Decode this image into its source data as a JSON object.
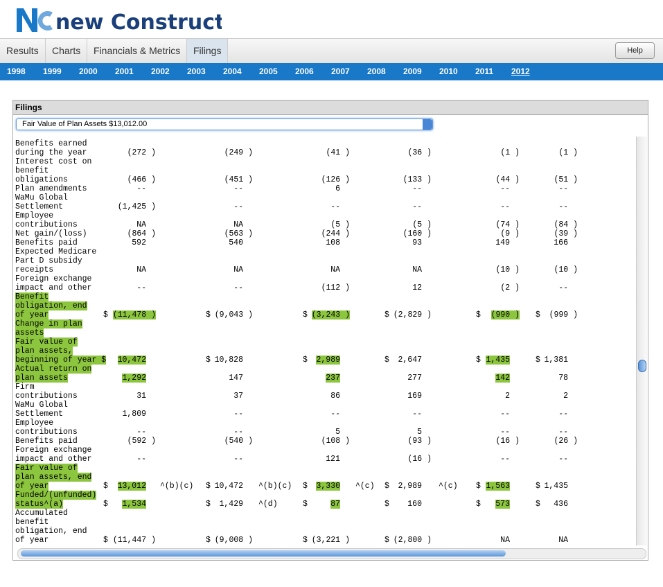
{
  "header": {
    "brand": "new Constructs"
  },
  "tabs": [
    {
      "label": "Results"
    },
    {
      "label": "Charts"
    },
    {
      "label": "Financials & Metrics"
    },
    {
      "label": "Filings",
      "active": true
    }
  ],
  "help": "Help",
  "years": [
    {
      "label": "1998"
    },
    {
      "label": "1999"
    },
    {
      "label": "2000"
    },
    {
      "label": "2001"
    },
    {
      "label": "2002"
    },
    {
      "label": "2003"
    },
    {
      "label": "2004"
    },
    {
      "label": "2005"
    },
    {
      "label": "2006"
    },
    {
      "label": "2007"
    },
    {
      "label": "2008"
    },
    {
      "label": "2009"
    },
    {
      "label": "2010"
    },
    {
      "label": "2011"
    },
    {
      "label": "2012",
      "current": true
    }
  ],
  "panel": {
    "title": "Filings",
    "select": "Fair Value of Plan Assets $13,012.00"
  },
  "rows": [
    {
      "label": "Benefits earned"
    },
    {
      "label": "during the year",
      "cells": [
        "(272 )",
        "(249 )",
        "(41 )",
        "(36 )",
        "(1 )",
        "(1 )"
      ]
    },
    {
      "label": "Interest cost on"
    },
    {
      "label": "benefit"
    },
    {
      "label": "obligations",
      "cells": [
        "(466 )",
        "(451 )",
        "(126 )",
        "(133 )",
        "(44 )",
        "(51 )"
      ]
    },
    {
      "label": "Plan amendments",
      "cells": [
        "--",
        "--",
        "6",
        "--",
        "--",
        "--"
      ]
    },
    {
      "label": "WaMu Global"
    },
    {
      "label": "Settlement",
      "cells": [
        "(1,425 )",
        "--",
        "--",
        "--",
        "--",
        "--"
      ]
    },
    {
      "label": "Employee"
    },
    {
      "label": "contributions",
      "cells": [
        "NA",
        "NA",
        "(5 )",
        "(5 )",
        "(74 )",
        "(84 )"
      ]
    },
    {
      "label": "Net gain/(loss)",
      "cells": [
        "(864 )",
        "(563 )",
        "(244 )",
        "(160 )",
        "(9 )",
        "(39 )"
      ]
    },
    {
      "label": "Benefits paid",
      "cells": [
        "592",
        "540",
        "108",
        "93",
        "149",
        "166"
      ]
    },
    {
      "label": "Expected Medicare"
    },
    {
      "label": "Part D subsidy"
    },
    {
      "label": "receipts",
      "cells": [
        "NA",
        "NA",
        "NA",
        "NA",
        "(10 )",
        "(10 )"
      ]
    },
    {
      "label": "Foreign exchange"
    },
    {
      "label": "impact and other",
      "cells": [
        "--",
        "--",
        "(112 )",
        "12",
        "(2 )",
        "--"
      ]
    },
    {
      "label": "Benefit",
      "hl": true
    },
    {
      "label": "obligation, end",
      "hl": true
    },
    {
      "label": "of year",
      "hl": true,
      "cells": [
        {
          "cur": "$",
          "text": "(11,478 )",
          "hl": true
        },
        {
          "cur": "$",
          "text": "(9,043 )"
        },
        {
          "cur": "$",
          "text": "(3,243 )",
          "hl": true
        },
        {
          "cur": "$",
          "text": "(2,829 )"
        },
        {
          "cur": "$",
          "text": "(990 )",
          "hl": true
        },
        {
          "cur": "$",
          "text": "(999 )"
        }
      ]
    },
    {
      "label": "Change in plan",
      "hl": true
    },
    {
      "label": "assets",
      "hl": true
    },
    {
      "label": "Fair value of",
      "hl": true
    },
    {
      "label": "plan assets,",
      "hl": true
    },
    {
      "label": "beginning of year $",
      "hl": true,
      "cells": [
        {
          "text": "10,472",
          "hl": true
        },
        {
          "cur": "$",
          "text": "10,828"
        },
        {
          "cur": "$",
          "text": "2,989",
          "hl": true
        },
        {
          "cur": "$",
          "text": "2,647"
        },
        {
          "cur": "$",
          "text": "1,435",
          "hl": true
        },
        {
          "cur": "$",
          "text": "1,381"
        }
      ]
    },
    {
      "label": "Actual return on",
      "hl": true
    },
    {
      "label": "plan assets",
      "hl": true,
      "cells": [
        {
          "text": "1,292",
          "hl": true
        },
        "147",
        {
          "text": "237",
          "hl": true
        },
        "277",
        {
          "text": "142",
          "hl": true
        },
        "78"
      ]
    },
    {
      "label": "Firm"
    },
    {
      "label": "contributions",
      "cells": [
        "31",
        "37",
        "86",
        "169",
        "2",
        "2"
      ]
    },
    {
      "label": "WaMu Global"
    },
    {
      "label": "Settlement",
      "cells": [
        "1,809",
        "--",
        "--",
        "--",
        "--",
        "--"
      ]
    },
    {
      "label": "Employee"
    },
    {
      "label": "contributions",
      "cells": [
        "--",
        "--",
        "5",
        "5",
        "--",
        "--"
      ]
    },
    {
      "label": "Benefits paid",
      "cells": [
        "(592 )",
        "(540 )",
        "(108 )",
        "(93 )",
        "(16 )",
        "(26 )"
      ]
    },
    {
      "label": "Foreign exchange"
    },
    {
      "label": "impact and other",
      "cells": [
        "--",
        "--",
        "121",
        "(16 )",
        "--",
        "--"
      ]
    },
    {
      "label": "Fair value of",
      "hl": true
    },
    {
      "label": "plan assets, end",
      "hl": true
    },
    {
      "label": "of year",
      "hl": true,
      "cells": [
        {
          "cur": "$",
          "text": "13,012",
          "hl": true,
          "note": "^(b)(c)"
        },
        {
          "cur": "$",
          "text": "10,472",
          "note": "^(b)(c)"
        },
        {
          "cur": "$",
          "text": "3,330",
          "hl": true,
          "note": "^(c)"
        },
        {
          "cur": "$",
          "text": "2,989",
          "note": "^(c)"
        },
        {
          "cur": "$",
          "text": "1,563",
          "hl": true
        },
        {
          "cur": "$",
          "text": "1,435"
        }
      ]
    },
    {
      "label": "Funded/(unfunded)",
      "hl": true
    },
    {
      "label": "status^(a)",
      "hl": true,
      "cells": [
        {
          "cur": "$",
          "text": "1,534",
          "hl": true
        },
        {
          "cur": "$",
          "text": "1,429",
          "note": "^(d)"
        },
        {
          "cur": "$",
          "text": "87",
          "hl": true
        },
        {
          "cur": "$",
          "text": "160"
        },
        {
          "cur": "$",
          "text": "573",
          "hl": true
        },
        {
          "cur": "$",
          "text": "436"
        }
      ]
    },
    {
      "label": "Accumulated"
    },
    {
      "label": "benefit"
    },
    {
      "label": "obligation, end"
    },
    {
      "label": "of year",
      "cells": [
        {
          "cur": "$",
          "text": "(11,447 )"
        },
        {
          "cur": "$",
          "text": "(9,008 )"
        },
        {
          "cur": "$",
          "text": "(3,221 )"
        },
        {
          "cur": "$",
          "text": "(2,800 )"
        },
        "NA",
        "NA"
      ]
    }
  ]
}
